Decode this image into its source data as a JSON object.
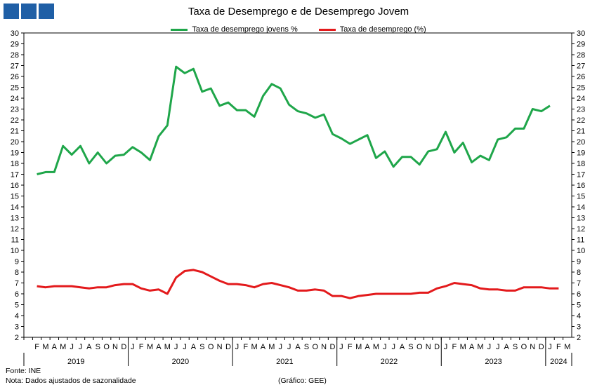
{
  "logo_icon": "ministry-logo-squares",
  "chart_data": {
    "type": "line",
    "title": "Taxa de Desemprego e de Desemprego Jovem",
    "ylim": [
      2,
      30
    ],
    "y_ticks": [
      2,
      3,
      4,
      5,
      6,
      7,
      8,
      9,
      10,
      11,
      12,
      13,
      14,
      15,
      16,
      17,
      18,
      19,
      20,
      21,
      22,
      23,
      24,
      25,
      26,
      27,
      28,
      29,
      30
    ],
    "grid": false,
    "legend_position": "top-center",
    "month_labels": [
      "J",
      "F",
      "M",
      "A",
      "M",
      "J",
      "J",
      "A",
      "S",
      "O",
      "N",
      "D"
    ],
    "year_labels": [
      "2019",
      "2020",
      "2021",
      "2022",
      "2023",
      "2024"
    ],
    "x_start": "2019-01",
    "series": [
      {
        "name": "Taxa de desemprego jovens %",
        "color": "#1fa64a",
        "values": [
          17.0,
          17.2,
          17.2,
          19.6,
          18.8,
          19.6,
          18.0,
          19.0,
          18.0,
          18.7,
          18.8,
          19.5,
          19.0,
          18.3,
          20.5,
          21.5,
          26.9,
          26.3,
          26.7,
          24.6,
          24.9,
          23.3,
          23.6,
          22.9,
          22.9,
          22.3,
          24.2,
          25.3,
          24.9,
          23.4,
          22.8,
          22.6,
          22.2,
          22.5,
          20.7,
          20.3,
          19.8,
          20.2,
          20.6,
          18.5,
          19.1,
          17.7,
          18.6,
          18.6,
          17.9,
          19.1,
          19.3,
          20.9,
          19.0,
          19.9,
          18.1,
          18.7,
          18.3,
          20.2,
          20.4,
          21.2,
          21.2,
          23.0,
          22.8,
          23.3
        ]
      },
      {
        "name": "Taxa de desemprego (%)",
        "color": "#e31a1c",
        "values": [
          6.7,
          6.6,
          6.7,
          6.7,
          6.7,
          6.6,
          6.5,
          6.6,
          6.6,
          6.8,
          6.9,
          6.9,
          6.5,
          6.3,
          6.4,
          6.0,
          7.5,
          8.1,
          8.2,
          8.0,
          7.6,
          7.2,
          6.9,
          6.9,
          6.8,
          6.6,
          6.9,
          7.0,
          6.8,
          6.6,
          6.3,
          6.3,
          6.4,
          6.3,
          5.8,
          5.8,
          5.6,
          5.8,
          5.9,
          6.0,
          6.0,
          6.0,
          6.0,
          6.0,
          6.1,
          6.1,
          6.5,
          6.7,
          7.0,
          6.9,
          6.8,
          6.5,
          6.4,
          6.4,
          6.3,
          6.3,
          6.6,
          6.6,
          6.6,
          6.5,
          6.5
        ]
      }
    ]
  },
  "footer": {
    "source": "Fonte: INE",
    "note": "Nota: Dados ajustados de sazonalidade",
    "credit": "(Gráfico: GEE)"
  }
}
